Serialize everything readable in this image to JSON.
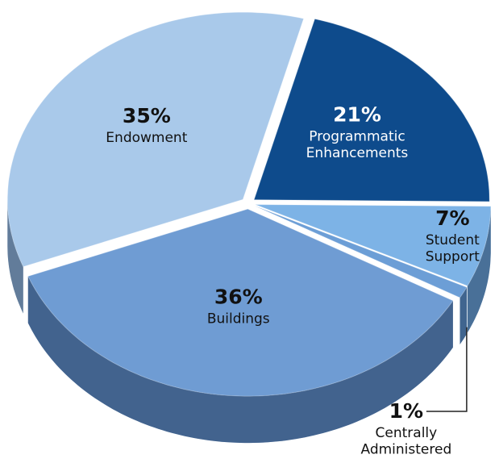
{
  "chart_data": {
    "type": "pie",
    "categories": [
      "Programmatic Enhancements",
      "Student Support",
      "Centrally Administered",
      "Buildings",
      "Endowment"
    ],
    "values": [
      21,
      7,
      1,
      36,
      35
    ],
    "value_labels": [
      "21%",
      "7%",
      "1%",
      "36%",
      "35%"
    ],
    "colors": [
      "#0e4b8c",
      "#7db3e6",
      "#6c9ed6",
      "#6f9cd3",
      "#a9c9ea"
    ]
  }
}
